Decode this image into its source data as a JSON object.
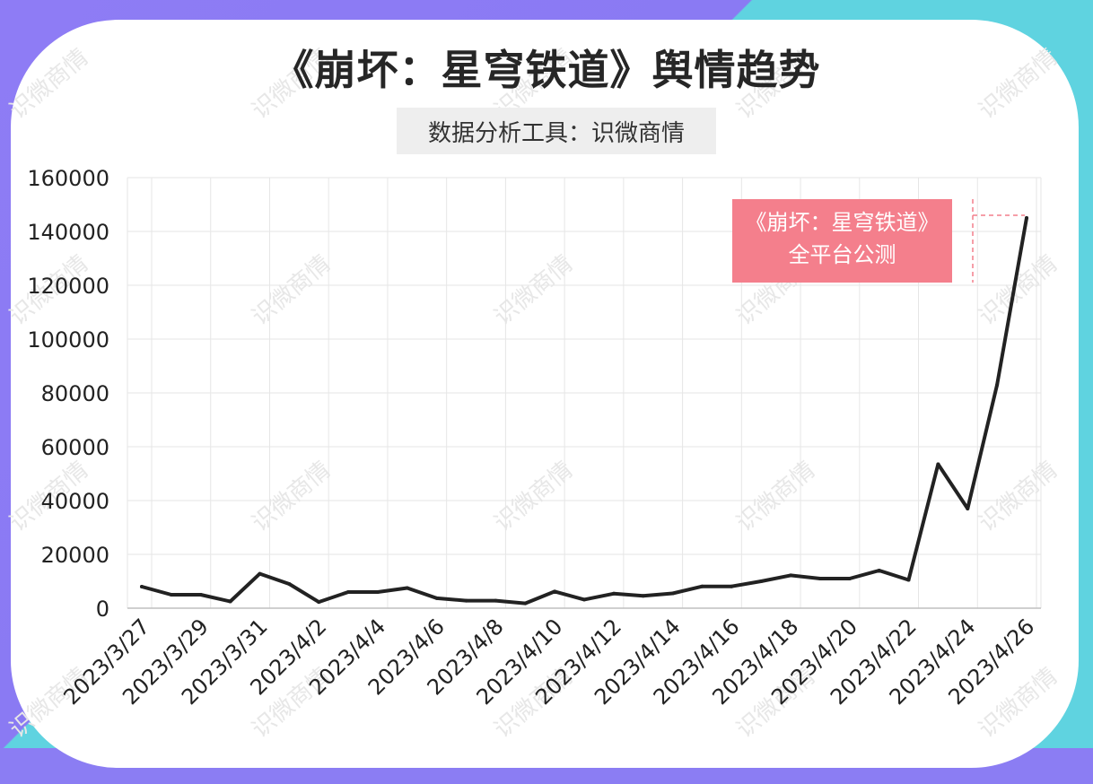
{
  "title": "《崩坏：星穹铁道》舆情趋势",
  "subtitle": "数据分析工具：识微商情",
  "watermark": "识微商情",
  "annotation": "《崩坏：星穹铁道》全平台公测",
  "colors": {
    "line": "#222222",
    "annotation": "#f47f8c",
    "background_teal": "#5fd3e0",
    "background_purple": "#8b7df3"
  },
  "chart_data": {
    "type": "line",
    "title": "《崩坏：星穹铁道》舆情趋势",
    "xlabel": "",
    "ylabel": "",
    "ylim": [
      0,
      160000
    ],
    "yticks": [
      0,
      20000,
      40000,
      60000,
      80000,
      100000,
      120000,
      140000,
      160000
    ],
    "grid": true,
    "x": [
      "2023/3/27",
      "2023/3/28",
      "2023/3/29",
      "2023/3/30",
      "2023/3/31",
      "2023/4/1",
      "2023/4/2",
      "2023/4/3",
      "2023/4/4",
      "2023/4/5",
      "2023/4/6",
      "2023/4/7",
      "2023/4/8",
      "2023/4/9",
      "2023/4/10",
      "2023/4/11",
      "2023/4/12",
      "2023/4/13",
      "2023/4/14",
      "2023/4/15",
      "2023/4/16",
      "2023/4/17",
      "2023/4/18",
      "2023/4/19",
      "2023/4/20",
      "2023/4/21",
      "2023/4/22",
      "2023/4/23",
      "2023/4/24",
      "2023/4/25",
      "2023/4/26"
    ],
    "x_tick_labels": [
      "2023/3/27",
      "2023/3/29",
      "2023/3/31",
      "2023/4/2",
      "2023/4/4",
      "2023/4/6",
      "2023/4/8",
      "2023/4/10",
      "2023/4/12",
      "2023/4/14",
      "2023/4/16",
      "2023/4/18",
      "2023/4/20",
      "2023/4/22",
      "2023/4/24",
      "2023/4/26"
    ],
    "values": [
      8000,
      5000,
      5000,
      2500,
      12800,
      9000,
      2300,
      6000,
      6000,
      7500,
      3700,
      2800,
      2800,
      1800,
      6200,
      3200,
      5400,
      4600,
      5500,
      8100,
      8100,
      10000,
      12200,
      11000,
      11000,
      14000,
      10500,
      53500,
      37000,
      83000,
      145000
    ]
  }
}
